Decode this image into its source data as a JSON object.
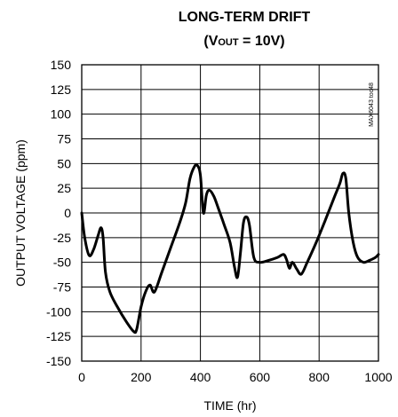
{
  "chart_data": {
    "type": "line",
    "title_line1": "LONG-TERM DRIFT",
    "title_line2_prefix": "(V",
    "title_line2_sub": "OUT",
    "title_line2_suffix": " = 10V)",
    "xlabel": "TIME (hr)",
    "ylabel": "OUTPUT VOLTAGE (ppm)",
    "xlim": [
      0,
      1000
    ],
    "ylim": [
      -150,
      150
    ],
    "xticks": [
      "0",
      "200",
      "400",
      "600",
      "800",
      "1000"
    ],
    "xtick_values": [
      0,
      200,
      400,
      600,
      800,
      1000
    ],
    "yticks": [
      "150",
      "125",
      "100",
      "75",
      "50",
      "25",
      "0",
      "-25",
      "-50",
      "-75",
      "-100",
      "-125",
      "-150"
    ],
    "ytick_values": [
      150,
      125,
      100,
      75,
      50,
      25,
      0,
      -25,
      -50,
      -75,
      -100,
      -125,
      -150
    ],
    "grid": true,
    "watermark": "MAX6043 toc48",
    "series": [
      {
        "x": [
          0,
          10,
          25,
          40,
          55,
          65,
          72,
          80,
          95,
          120,
          150,
          175,
          185,
          200,
          215,
          230,
          245,
          270,
          300,
          330,
          350,
          365,
          380,
          390,
          400,
          410,
          420,
          430,
          445,
          460,
          480,
          500,
          515,
          525,
          535,
          545,
          555,
          565,
          580,
          600,
          630,
          660,
          680,
          690,
          700,
          710,
          725,
          740,
          760,
          790,
          820,
          850,
          870,
          880,
          890,
          900,
          915,
          930,
          950,
          970,
          990,
          1000
        ],
        "y": [
          0,
          -25,
          -43,
          -37,
          -23,
          -15,
          -25,
          -60,
          -80,
          -95,
          -110,
          -120,
          -118,
          -95,
          -80,
          -73,
          -80,
          -60,
          -35,
          -10,
          10,
          35,
          47,
          48,
          38,
          0,
          18,
          23,
          17,
          5,
          -12,
          -30,
          -55,
          -65,
          -40,
          -10,
          -4,
          -12,
          -45,
          -50,
          -48,
          -45,
          -42,
          -47,
          -56,
          -50,
          -57,
          -62,
          -50,
          -30,
          -8,
          15,
          30,
          40,
          35,
          0,
          -30,
          -45,
          -50,
          -48,
          -45,
          -42
        ]
      }
    ]
  }
}
